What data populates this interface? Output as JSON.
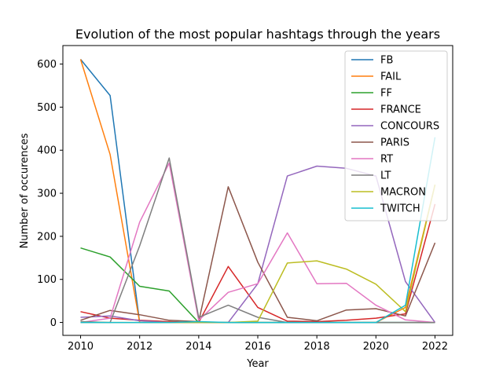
{
  "chart_data": {
    "type": "line",
    "title": "Evolution of the most popular hashtags through the years",
    "xlabel": "Year",
    "ylabel": "Number of occurences",
    "xlim": [
      2009.4,
      2022.6
    ],
    "ylim": [
      -30,
      643
    ],
    "xticks": [
      2010,
      2012,
      2014,
      2016,
      2018,
      2020,
      2022
    ],
    "yticks": [
      0,
      100,
      200,
      300,
      400,
      500,
      600
    ],
    "grid": false,
    "legend_position": "top-right",
    "x": [
      2010,
      2011,
      2012,
      2013,
      2014,
      2015,
      2016,
      2017,
      2018,
      2019,
      2020,
      2021,
      2022
    ],
    "series": [
      {
        "name": "FB",
        "color": "#1f77b4",
        "values": [
          611,
          527,
          0,
          0,
          0,
          0,
          0,
          0,
          0,
          0,
          0,
          0,
          0
        ]
      },
      {
        "name": "FAIL",
        "color": "#ff7f0e",
        "values": [
          611,
          390,
          0,
          0,
          0,
          0,
          0,
          0,
          0,
          0,
          0,
          35,
          320
        ]
      },
      {
        "name": "FF",
        "color": "#2ca02c",
        "values": [
          173,
          152,
          84,
          73,
          0,
          0,
          0,
          0,
          0,
          0,
          0,
          0,
          0
        ]
      },
      {
        "name": "FRANCE",
        "color": "#d62728",
        "values": [
          25,
          10,
          5,
          2,
          0,
          130,
          35,
          3,
          2,
          5,
          10,
          20,
          275
        ]
      },
      {
        "name": "CONCOURS",
        "color": "#9467bd",
        "values": [
          12,
          15,
          4,
          0,
          0,
          0,
          90,
          340,
          363,
          358,
          340,
          95,
          0
        ]
      },
      {
        "name": "PARIS",
        "color": "#8c564b",
        "values": [
          5,
          28,
          18,
          5,
          2,
          315,
          140,
          12,
          4,
          29,
          32,
          15,
          185
        ]
      },
      {
        "name": "RT",
        "color": "#e377c2",
        "values": [
          0,
          10,
          233,
          370,
          5,
          70,
          90,
          208,
          90,
          91,
          40,
          6,
          0
        ]
      },
      {
        "name": "LT",
        "color": "#7f7f7f",
        "values": [
          2,
          0,
          178,
          382,
          12,
          40,
          12,
          0,
          0,
          0,
          0,
          0,
          0
        ]
      },
      {
        "name": "MACRON",
        "color": "#bcbd22",
        "values": [
          0,
          0,
          0,
          0,
          0,
          0,
          3,
          138,
          143,
          124,
          89,
          25,
          320
        ]
      },
      {
        "name": "TWITCH",
        "color": "#17becf",
        "values": [
          0,
          0,
          0,
          0,
          2,
          0,
          0,
          0,
          0,
          0,
          0,
          40,
          430
        ]
      }
    ]
  }
}
